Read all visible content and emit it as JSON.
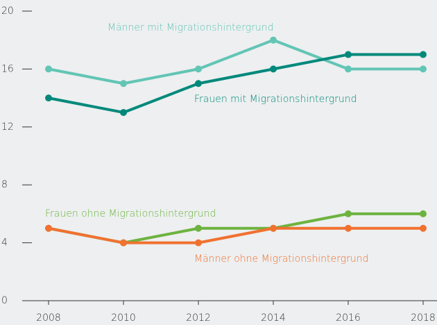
{
  "chart_data": {
    "type": "line",
    "x": [
      2008,
      2010,
      2012,
      2014,
      2016,
      2018
    ],
    "xlim": [
      2008,
      2018
    ],
    "xticks": [
      2008,
      2010,
      2012,
      2014,
      2016,
      2018
    ],
    "ylim": [
      0,
      20
    ],
    "yticks": [
      0,
      4,
      8,
      12,
      16,
      20
    ],
    "series": [
      {
        "name": "Männer mit Migrationshintergrund",
        "color": "#62c5b5",
        "values": [
          16,
          15,
          16,
          18,
          16,
          16
        ]
      },
      {
        "name": "Frauen mit Migrationshintergrund",
        "color": "#00897b",
        "values": [
          14,
          13,
          15,
          16,
          17,
          17
        ]
      },
      {
        "name": "Frauen ohne Migrationshintergrund",
        "color": "#6db33f",
        "values": [
          5,
          4,
          5,
          5,
          6,
          6
        ]
      },
      {
        "name": "Männer ohne Migrationshintergrund",
        "color": "#f07130",
        "values": [
          5,
          4,
          4,
          5,
          5,
          5
        ]
      }
    ]
  }
}
